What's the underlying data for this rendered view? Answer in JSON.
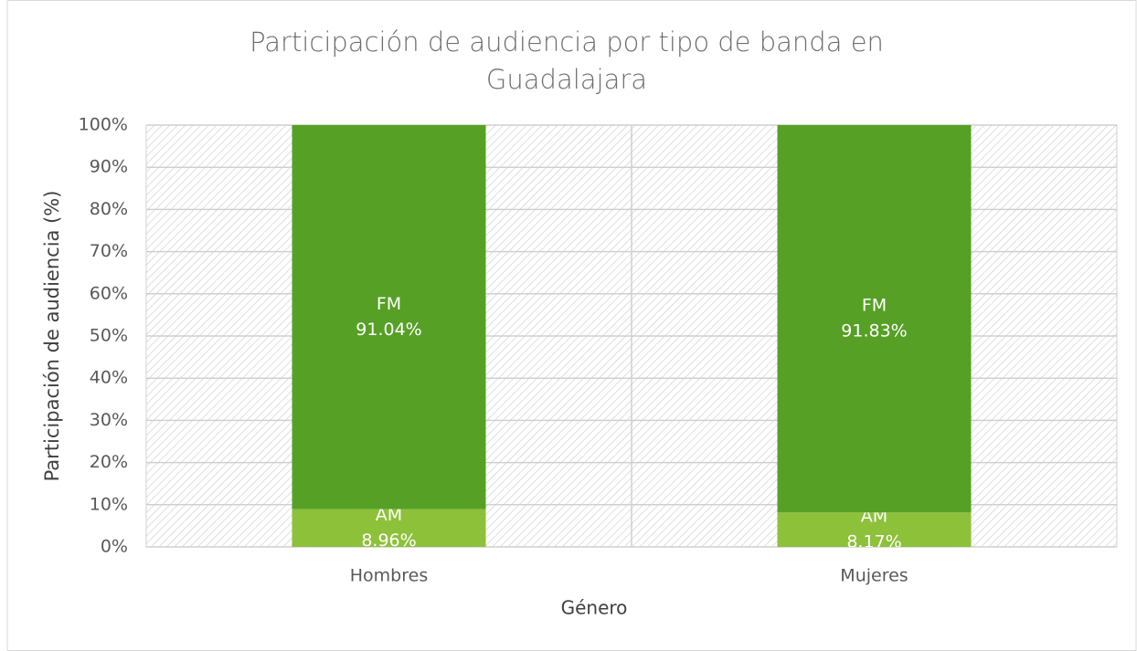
{
  "chart_data": {
    "type": "stacked_bar",
    "title": "Participación de audiencia por tipo de banda en Guadalajara",
    "x_label": "Género",
    "y_label": "Participación de audiencia (%)",
    "categories": [
      "Hombres",
      "Mujeres"
    ],
    "series": [
      {
        "name": "AM",
        "color": "#8dc13a",
        "values": [
          8.96,
          8.17
        ],
        "value_labels": [
          "8.96%",
          "8.17%"
        ]
      },
      {
        "name": "FM",
        "color": "#56a026",
        "values": [
          91.04,
          91.83
        ],
        "value_labels": [
          "91.04%",
          "91.83%"
        ]
      }
    ],
    "ylim": [
      0,
      100
    ],
    "yticks": [
      {
        "value": 0,
        "label": "0%"
      },
      {
        "value": 10,
        "label": "10%"
      },
      {
        "value": 20,
        "label": "20%"
      },
      {
        "value": 30,
        "label": "30%"
      },
      {
        "value": 40,
        "label": "40%"
      },
      {
        "value": 50,
        "label": "50%"
      },
      {
        "value": 60,
        "label": "60%"
      },
      {
        "value": 70,
        "label": "70%"
      },
      {
        "value": 80,
        "label": "80%"
      },
      {
        "value": 90,
        "label": "90%"
      },
      {
        "value": 100,
        "label": "100%"
      }
    ],
    "grid": true
  }
}
